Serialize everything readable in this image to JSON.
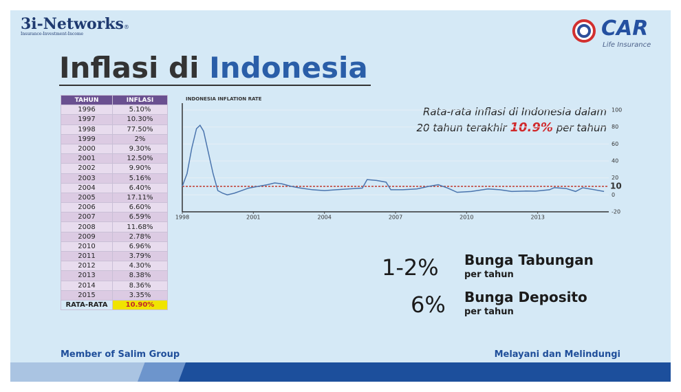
{
  "header": {
    "logo_left": {
      "name": "3i-Networks",
      "mark": "®",
      "tagline": "Insurance-Investment-Income"
    },
    "logo_right": {
      "name": "CAR",
      "tagline": "Life Insurance"
    },
    "title_parts": [
      "Inflasi di",
      "Indonesia"
    ]
  },
  "table": {
    "columns": [
      "TAHUN",
      "INFLASI"
    ],
    "rows": [
      [
        "1996",
        "5.10%"
      ],
      [
        "1997",
        "10.30%"
      ],
      [
        "1998",
        "77.50%"
      ],
      [
        "1999",
        "2%"
      ],
      [
        "2000",
        "9.30%"
      ],
      [
        "2001",
        "12.50%"
      ],
      [
        "2002",
        "9.90%"
      ],
      [
        "2003",
        "5.16%"
      ],
      [
        "2004",
        "6.40%"
      ],
      [
        "2005",
        "17.11%"
      ],
      [
        "2006",
        "6.60%"
      ],
      [
        "2007",
        "6.59%"
      ],
      [
        "2008",
        "11.68%"
      ],
      [
        "2009",
        "2.78%"
      ],
      [
        "2010",
        "6.96%"
      ],
      [
        "2011",
        "3.79%"
      ],
      [
        "2012",
        "4.30%"
      ],
      [
        "2013",
        "8.38%"
      ],
      [
        "2014",
        "8.36%"
      ],
      [
        "2015",
        "3.35%"
      ]
    ],
    "footer": [
      "RATA-RATA",
      "10.90%"
    ]
  },
  "chart_data": {
    "type": "line",
    "title": "INDONESIA INFLATION RATE",
    "annotation": {
      "line1": "Rata-rata inflasi di Indonesia dalam",
      "line2_start": "20 tahun terakhir",
      "highlight": "10.9%",
      "line2_end": "per tahun"
    },
    "x": [
      1998.0,
      1998.2,
      1998.4,
      1998.6,
      1998.75,
      1998.9,
      1999.1,
      1999.3,
      1999.5,
      1999.7,
      1999.9,
      2000.2,
      2000.5,
      2000.8,
      2001.2,
      2001.6,
      2001.9,
      2002.2,
      2002.6,
      2003.0,
      2003.5,
      2004.0,
      2004.5,
      2005.0,
      2005.6,
      2005.8,
      2006.2,
      2006.6,
      2006.8,
      2007.3,
      2007.9,
      2008.4,
      2008.8,
      2009.2,
      2009.6,
      2010.2,
      2010.9,
      2011.4,
      2011.9,
      2012.5,
      2012.9,
      2013.5,
      2013.7,
      2014.2,
      2014.6,
      2014.9,
      2015.3,
      2015.8
    ],
    "series": [
      {
        "color": "#4a74ad",
        "values": [
          10,
          25,
          55,
          78,
          82,
          75,
          50,
          25,
          5,
          2,
          0,
          2,
          5,
          8,
          10,
          12,
          14,
          13,
          10,
          8,
          6,
          5,
          6,
          7,
          8,
          18,
          17,
          15,
          6,
          6,
          7,
          10,
          12,
          8,
          3,
          4,
          7,
          6,
          4,
          4.5,
          4.3,
          6,
          8.5,
          7.5,
          4,
          8.4,
          6.5,
          4
        ]
      }
    ],
    "xlim": [
      1998,
      2016
    ],
    "xticks": [
      1998,
      2001,
      2004,
      2007,
      2010,
      2013
    ],
    "ylim": [
      -20,
      100
    ],
    "yticks": [
      -20,
      0,
      20,
      40,
      60,
      80,
      100
    ],
    "reference_line": 10,
    "reference_color": "#c0392b",
    "grid": true
  },
  "callouts": [
    {
      "value": "1-2%",
      "label": "Bunga Tabungan",
      "sub": "per tahun"
    },
    {
      "value": "6%",
      "label": "Bunga Deposito",
      "sub": "per tahun"
    }
  ],
  "footer": {
    "left": "Member of Salim Group",
    "right": "Melayani dan Melindungi"
  }
}
